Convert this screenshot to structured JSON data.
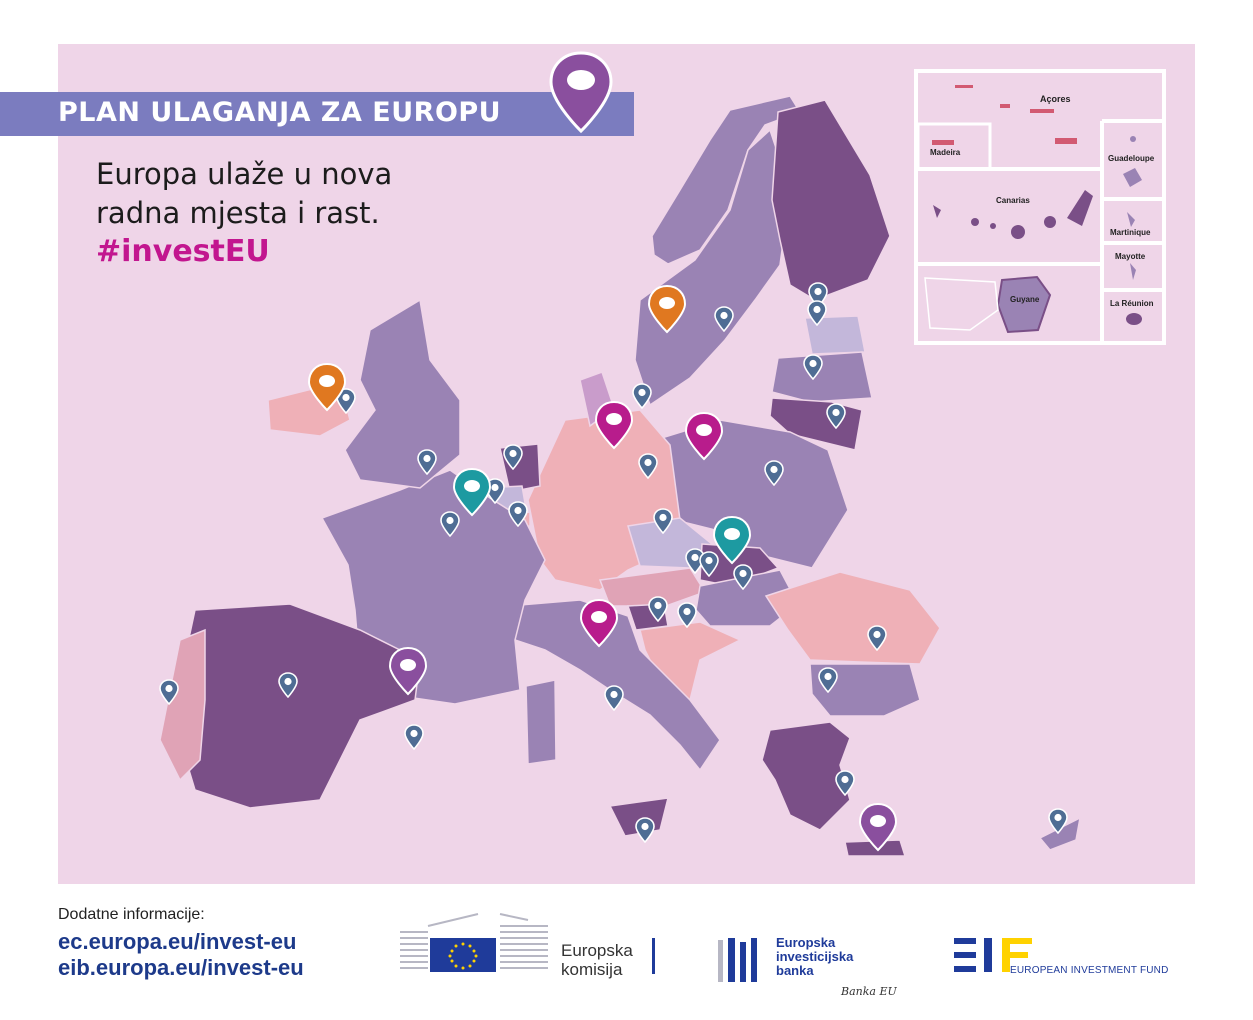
{
  "banner": {
    "title": "PLAN ULAGANJA ZA EUROPU"
  },
  "headline": {
    "line1": "Europa ulaže u nova",
    "line2": "radna mjesta i rast.",
    "hashtag": "#investEU"
  },
  "inset_labels": {
    "azores": "Açores",
    "madeira": "Madeira",
    "canarias": "Canarias",
    "guadeloupe": "Guadeloupe",
    "martinique": "Martinique",
    "mayotte": "Mayotte",
    "reunion": "La Réunion",
    "guyane": "Guyane"
  },
  "footer": {
    "label": "Dodatne informacije:",
    "link1": "ec.europa.eu/invest-eu",
    "link2": "eib.europa.eu/invest-eu"
  },
  "logos": {
    "ec_line1": "Europska",
    "ec_line2": "komisija",
    "eib_line1": "Europska",
    "eib_line2": "investicijska",
    "eib_line3": "banka",
    "eib_signature": "Banka EU",
    "eif_name": "EUROPEAN INVESTMENT FUND"
  },
  "colors": {
    "background": "#efd5e8",
    "banner": "#7b7cbf",
    "hashtag": "#c2168f",
    "pin_small": "#4f6d94",
    "pin_orange": "#e07820",
    "pin_magenta": "#b81c8c",
    "pin_teal": "#1d9aa1",
    "pin_purple": "#8a4f9e",
    "country_dark": "#7a4f87",
    "country_mid": "#9a83b4",
    "country_pink": "#efb0b7",
    "link": "#1d3a8a"
  },
  "pin_icons": {
    "small": "location-pin-icon",
    "large": "location-marker-icon"
  }
}
